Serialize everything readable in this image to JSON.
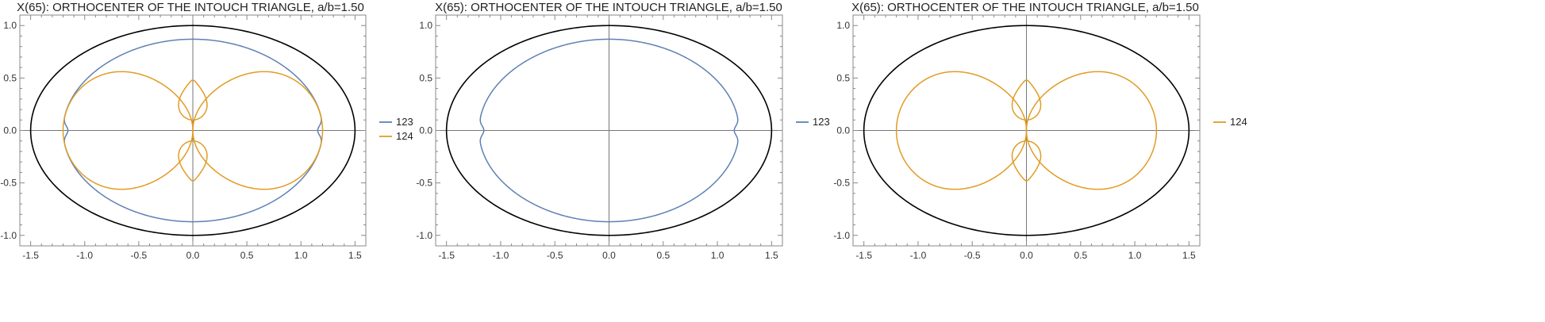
{
  "chart_data": [
    {
      "type": "line",
      "title": "X(65): ORTHOCENTER OF THE INTOUCH TRIANGLE, a/b=1.50",
      "xlabel": "",
      "ylabel": "",
      "xlim": [
        -1.6,
        1.6
      ],
      "ylim": [
        -1.1,
        1.1
      ],
      "xticks": [
        "-1.5",
        "-1.0",
        "-0.5",
        "0.0",
        "0.5",
        "1.0",
        "1.5"
      ],
      "yticks": [
        "-1.0",
        "-0.5",
        "0.0",
        "0.5",
        "1.0"
      ],
      "grid": false,
      "legend_position": "right",
      "legend": [
        "123",
        "124"
      ],
      "series": [
        {
          "name": "123",
          "color": "#5e81b5",
          "curve": "blue-ring",
          "rx": 1.2,
          "ry": 0.87,
          "cusp_x": 1.155
        },
        {
          "name": "124",
          "color": "#e19c24",
          "curve": "orange-loops",
          "outer_x": 1.2,
          "outer_y": 0.59,
          "outer_peak_x": 0.42,
          "inner_peak_y": 0.48,
          "inner_min_y": 0.1,
          "inner_half_width": 0.15
        },
        {
          "name": "ellipse",
          "color": "#000000",
          "curve": "ellipse",
          "rx": 1.5,
          "ry": 1.0
        }
      ]
    },
    {
      "type": "line",
      "title": "X(65): ORTHOCENTER OF THE INTOUCH TRIANGLE, a/b=1.50",
      "xlabel": "",
      "ylabel": "",
      "xlim": [
        -1.6,
        1.6
      ],
      "ylim": [
        -1.1,
        1.1
      ],
      "xticks": [
        "-1.5",
        "-1.0",
        "-0.5",
        "0.0",
        "0.5",
        "1.0",
        "1.5"
      ],
      "yticks": [
        "-1.0",
        "-0.5",
        "0.0",
        "0.5",
        "1.0"
      ],
      "grid": false,
      "legend_position": "right",
      "legend": [
        "123"
      ],
      "series": [
        {
          "name": "123",
          "color": "#5e81b5",
          "curve": "blue-ring",
          "rx": 1.2,
          "ry": 0.87,
          "cusp_x": 1.155
        },
        {
          "name": "ellipse",
          "color": "#000000",
          "curve": "ellipse",
          "rx": 1.5,
          "ry": 1.0
        }
      ]
    },
    {
      "type": "line",
      "title": "X(65): ORTHOCENTER OF THE INTOUCH TRIANGLE, a/b=1.50",
      "xlabel": "",
      "ylabel": "",
      "xlim": [
        -1.6,
        1.6
      ],
      "ylim": [
        -1.1,
        1.1
      ],
      "xticks": [
        "-1.5",
        "-1.0",
        "-0.5",
        "0.0",
        "0.5",
        "1.0",
        "1.5"
      ],
      "yticks": [
        "-1.0",
        "-0.5",
        "0.0",
        "0.5",
        "1.0"
      ],
      "grid": false,
      "legend_position": "right",
      "legend": [
        "124"
      ],
      "series": [
        {
          "name": "124",
          "color": "#e19c24",
          "curve": "orange-loops",
          "outer_x": 1.2,
          "outer_y": 0.59,
          "outer_peak_x": 0.42,
          "inner_peak_y": 0.48,
          "inner_min_y": 0.1,
          "inner_half_width": 0.15
        },
        {
          "name": "ellipse",
          "color": "#000000",
          "curve": "ellipse",
          "rx": 1.5,
          "ry": 1.0
        }
      ]
    }
  ]
}
